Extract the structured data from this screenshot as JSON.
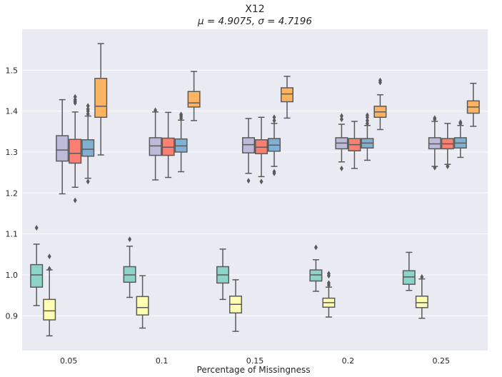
{
  "chart_data": {
    "type": "boxplot",
    "title": "X12",
    "subtitle": "μ = 4.9075, σ = 4.7196",
    "xlabel": "Percentage of Missingness",
    "ylabel": "",
    "ylim": [
      0.815,
      1.6
    ],
    "yticks": [
      "0.9",
      "1.0",
      "1.1",
      "1.2",
      "1.3",
      "1.4",
      "1.5"
    ],
    "categories": [
      "0.05",
      "0.1",
      "0.15",
      "0.2",
      "0.25"
    ],
    "grid": true,
    "legend": "none",
    "series": [
      {
        "color": "#8dd3c7",
        "boxes": [
          {
            "whislo": 0.925,
            "q1": 0.97,
            "med": 1.0,
            "q3": 1.025,
            "whishi": 1.075,
            "fliers": [
              1.115
            ]
          },
          {
            "whislo": 0.945,
            "q1": 0.982,
            "med": 1.0,
            "q3": 1.02,
            "whishi": 1.07,
            "fliers": [
              1.087
            ]
          },
          {
            "whislo": 0.94,
            "q1": 0.98,
            "med": 1.0,
            "q3": 1.02,
            "whishi": 1.063,
            "fliers": []
          },
          {
            "whislo": 0.96,
            "q1": 0.985,
            "med": 1.0,
            "q3": 1.012,
            "whishi": 1.037,
            "fliers": [
              1.067
            ]
          },
          {
            "whislo": 0.962,
            "q1": 0.977,
            "med": 0.995,
            "q3": 1.01,
            "whishi": 1.055,
            "fliers": []
          }
        ]
      },
      {
        "color": "#ffffb3",
        "boxes": [
          {
            "whislo": 0.851,
            "q1": 0.89,
            "med": 0.912,
            "q3": 0.94,
            "whishi": 1.012,
            "fliers": [
              1.015,
              1.045
            ]
          },
          {
            "whislo": 0.87,
            "q1": 0.902,
            "med": 0.92,
            "q3": 0.947,
            "whishi": 0.998,
            "fliers": []
          },
          {
            "whislo": 0.862,
            "q1": 0.907,
            "med": 0.928,
            "q3": 0.948,
            "whishi": 0.988,
            "fliers": []
          },
          {
            "whislo": 0.897,
            "q1": 0.921,
            "med": 0.932,
            "q3": 0.943,
            "whishi": 0.97,
            "fliers": [
              0.975,
              0.98,
              0.998,
              1.003
            ]
          },
          {
            "whislo": 0.894,
            "q1": 0.92,
            "med": 0.932,
            "q3": 0.948,
            "whishi": 0.99,
            "fliers": [
              0.995
            ]
          }
        ]
      },
      {
        "color": "#bebada",
        "boxes": [
          {
            "whislo": 1.198,
            "q1": 1.278,
            "med": 1.305,
            "q3": 1.34,
            "whishi": 1.428,
            "fliers": []
          },
          {
            "whislo": 1.232,
            "q1": 1.292,
            "med": 1.315,
            "q3": 1.335,
            "whishi": 1.398,
            "fliers": [
              1.402
            ]
          },
          {
            "whislo": 1.248,
            "q1": 1.298,
            "med": 1.318,
            "q3": 1.335,
            "whishi": 1.382,
            "fliers": [
              1.23
            ]
          },
          {
            "whislo": 1.276,
            "q1": 1.308,
            "med": 1.322,
            "q3": 1.335,
            "whishi": 1.368,
            "fliers": [
              1.26,
              1.38,
              1.388
            ]
          },
          {
            "whislo": 1.265,
            "q1": 1.308,
            "med": 1.32,
            "q3": 1.335,
            "whishi": 1.375,
            "fliers": [
              1.262,
              1.38,
              1.383
            ]
          }
        ]
      },
      {
        "color": "#fb8072",
        "boxes": [
          {
            "whislo": 1.214,
            "q1": 1.273,
            "med": 1.297,
            "q3": 1.331,
            "whishi": 1.398,
            "fliers": [
              1.182,
              1.42,
              1.424,
              1.428,
              1.435
            ]
          },
          {
            "whislo": 1.238,
            "q1": 1.292,
            "med": 1.312,
            "q3": 1.334,
            "whishi": 1.397,
            "fliers": []
          },
          {
            "whislo": 1.24,
            "q1": 1.296,
            "med": 1.312,
            "q3": 1.33,
            "whishi": 1.385,
            "fliers": [
              1.228
            ]
          },
          {
            "whislo": 1.26,
            "q1": 1.303,
            "med": 1.318,
            "q3": 1.333,
            "whishi": 1.375,
            "fliers": []
          },
          {
            "whislo": 1.27,
            "q1": 1.308,
            "med": 1.32,
            "q3": 1.333,
            "whishi": 1.37,
            "fliers": [
              1.265
            ]
          }
        ]
      },
      {
        "color": "#80b1d3",
        "boxes": [
          {
            "whislo": 1.236,
            "q1": 1.29,
            "med": 1.307,
            "q3": 1.33,
            "whishi": 1.388,
            "fliers": [
              1.228,
              1.393,
              1.4,
              1.405,
              1.413
            ]
          },
          {
            "whislo": 1.252,
            "q1": 1.3,
            "med": 1.315,
            "q3": 1.332,
            "whishi": 1.378,
            "fliers": [
              1.383,
              1.388,
              1.392
            ]
          },
          {
            "whislo": 1.265,
            "q1": 1.302,
            "med": 1.317,
            "q3": 1.333,
            "whishi": 1.37,
            "fliers": [
              1.248,
              1.252,
              1.377,
              1.385
            ]
          },
          {
            "whislo": 1.28,
            "q1": 1.31,
            "med": 1.322,
            "q3": 1.333,
            "whishi": 1.365,
            "fliers": [
              1.37,
              1.377,
              1.385,
              1.39
            ]
          },
          {
            "whislo": 1.287,
            "q1": 1.31,
            "med": 1.322,
            "q3": 1.335,
            "whishi": 1.365,
            "fliers": [
              1.37,
              1.373
            ]
          }
        ]
      },
      {
        "color": "#fdb462",
        "boxes": [
          {
            "whislo": 1.293,
            "q1": 1.385,
            "med": 1.412,
            "q3": 1.48,
            "whishi": 1.565,
            "fliers": []
          },
          {
            "whislo": 1.377,
            "q1": 1.41,
            "med": 1.42,
            "q3": 1.448,
            "whishi": 1.497,
            "fliers": []
          },
          {
            "whislo": 1.383,
            "q1": 1.423,
            "med": 1.442,
            "q3": 1.457,
            "whishi": 1.485,
            "fliers": []
          },
          {
            "whislo": 1.355,
            "q1": 1.385,
            "med": 1.398,
            "q3": 1.412,
            "whishi": 1.44,
            "fliers": [
              1.47,
              1.475
            ]
          },
          {
            "whislo": 1.363,
            "q1": 1.395,
            "med": 1.41,
            "q3": 1.425,
            "whishi": 1.468,
            "fliers": []
          }
        ]
      }
    ]
  }
}
